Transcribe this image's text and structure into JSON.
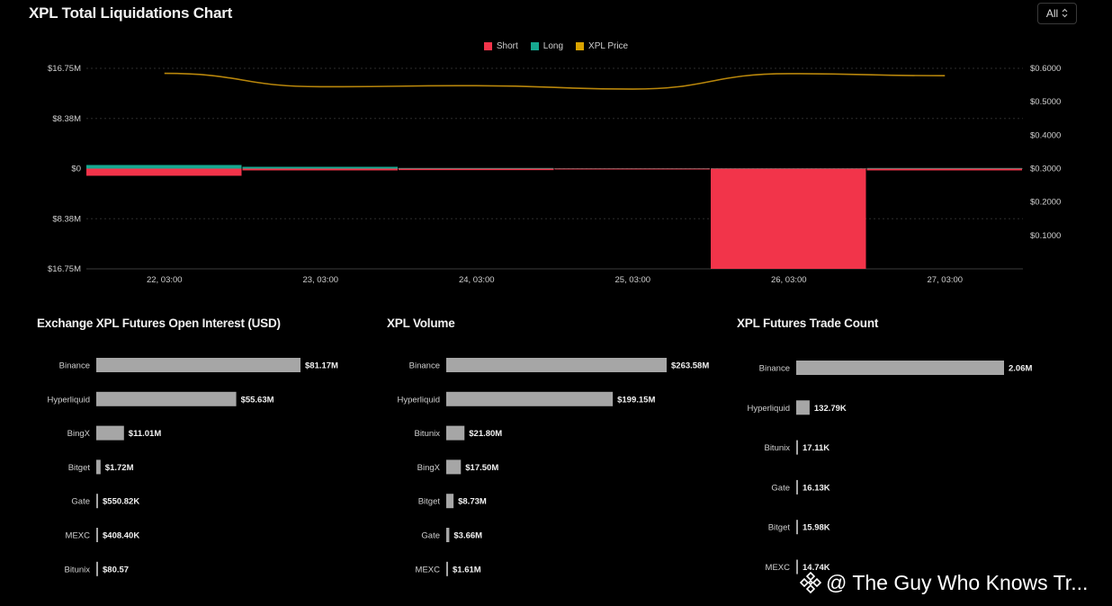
{
  "header": {
    "title": "XPL Total Liquidations Chart",
    "range_select": "All",
    "range_chevron": "⌃⌄"
  },
  "colors": {
    "short": "#f2344a",
    "long": "#16a890",
    "price": "#b8860b",
    "bar_gray": "#a6a6a6",
    "grid": "#2b2b2b"
  },
  "chart_data": [
    {
      "type": "bar",
      "title": "XPL Total Liquidations Chart",
      "legend": [
        "Short",
        "Long",
        "XPL Price"
      ],
      "legend_position": "top-center",
      "categories": [
        "22, 03:00",
        "23, 03:00",
        "24, 03:00",
        "25, 03:00",
        "26, 03:00",
        "27, 03:00"
      ],
      "series": [
        {
          "name": "Short",
          "values": [
            -1.2,
            -0.3,
            -0.25,
            -0.08,
            -16.75,
            -0.3
          ]
        },
        {
          "name": "Long",
          "values": [
            0.6,
            0.3,
            0.1,
            0.05,
            0.05,
            0.1
          ]
        },
        {
          "name": "XPL Price",
          "axis": "right",
          "values": [
            0.585,
            0.545,
            0.548,
            0.538,
            0.584,
            0.578
          ]
        }
      ],
      "y_ticks_left": [
        "$16.75M",
        "$8.38M",
        "$0",
        "$8.38M",
        "$16.75M"
      ],
      "ylim_left": [
        -16.75,
        16.75
      ],
      "y_ticks_right": [
        "$0.6000",
        "$0.5000",
        "$0.4000",
        "$0.3000",
        "$0.2000",
        "$0.1000"
      ],
      "ylim_right": [
        0,
        0.6
      ],
      "grid": true
    },
    {
      "type": "bar",
      "orientation": "horizontal",
      "title": "Exchange XPL Futures Open Interest (USD)",
      "categories": [
        "Binance",
        "Hyperliquid",
        "BingX",
        "Bitget",
        "Gate",
        "MEXC",
        "Bitunix"
      ],
      "values": [
        81170000,
        55630000,
        11010000,
        1720000,
        550820,
        408400,
        80.57
      ],
      "value_labels": [
        "$81.17M",
        "$55.63M",
        "$11.01M",
        "$1.72M",
        "$550.82K",
        "$408.40K",
        "$80.57"
      ]
    },
    {
      "type": "bar",
      "orientation": "horizontal",
      "title": "XPL Volume",
      "categories": [
        "Binance",
        "Hyperliquid",
        "Bitunix",
        "BingX",
        "Bitget",
        "Gate",
        "MEXC"
      ],
      "values": [
        263580000,
        199150000,
        21800000,
        17500000,
        8730000,
        3660000,
        1610000
      ],
      "value_labels": [
        "$263.58M",
        "$199.15M",
        "$21.80M",
        "$17.50M",
        "$8.73M",
        "$3.66M",
        "$1.61M"
      ]
    },
    {
      "type": "bar",
      "orientation": "horizontal",
      "title": "XPL Futures Trade Count",
      "categories": [
        "Binance",
        "Hyperliquid",
        "Bitunix",
        "Gate",
        "Bitget",
        "MEXC"
      ],
      "values": [
        2060000,
        132790,
        17110,
        16130,
        15980,
        14740
      ],
      "value_labels": [
        "2.06M",
        "132.79K",
        "17.11K",
        "16.13K",
        "15.98K",
        "14.74K"
      ]
    }
  ],
  "watermark": {
    "text": "@ The Guy Who Knows Tr..."
  }
}
